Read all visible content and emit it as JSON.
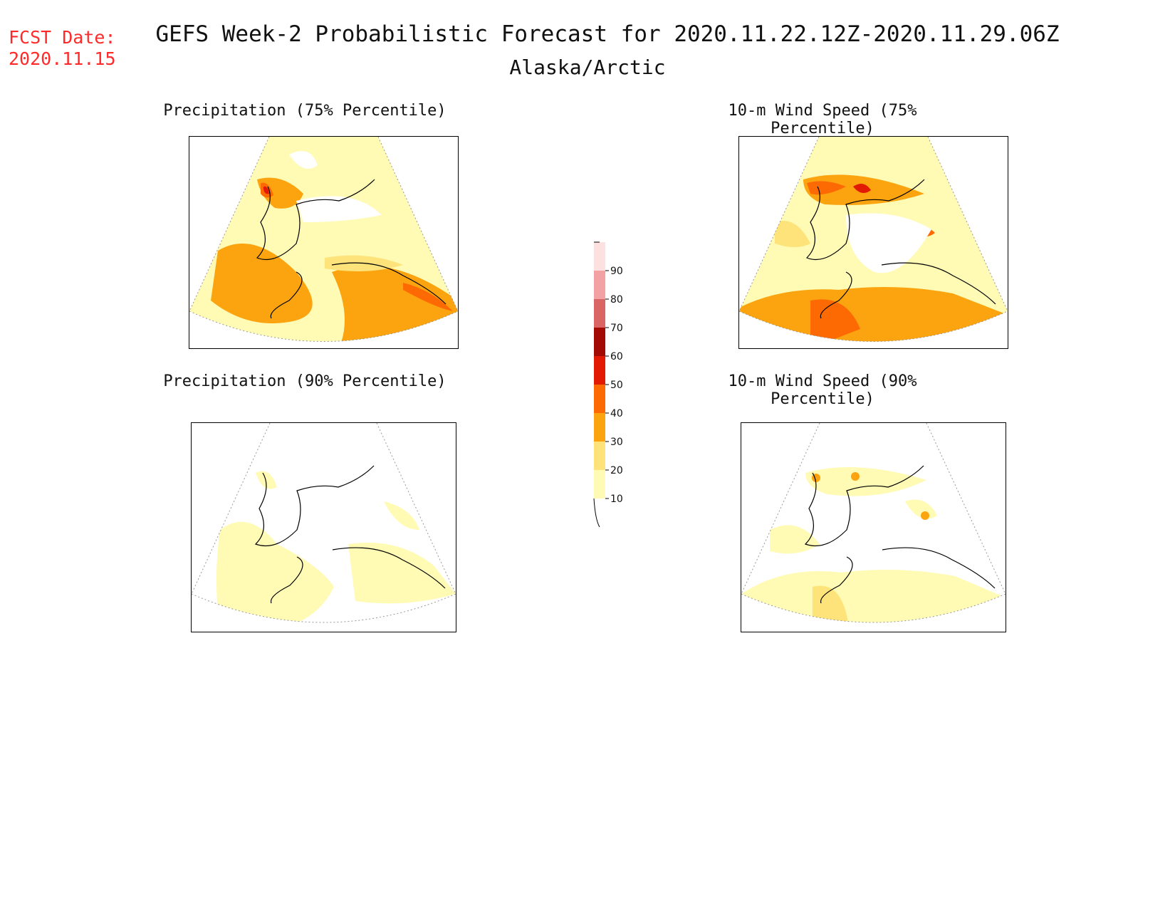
{
  "header": {
    "fcst_label": "FCST Date:",
    "fcst_date": "2020.11.15",
    "title": "GEFS Week-2 Probabilistic Forecast for 2020.11.22.12Z-2020.11.29.06Z",
    "region": "Alaska/Arctic"
  },
  "panels": [
    {
      "title": "Precipitation (75% Percentile)",
      "intensity": "high-precip"
    },
    {
      "title": "10-m Wind Speed (75% Percentile)",
      "intensity": "high-wind"
    },
    {
      "title": "Precipitation (90% Percentile)",
      "intensity": "low-precip"
    },
    {
      "title": "10-m Wind Speed (90% Percentile)",
      "intensity": "low-wind"
    }
  ],
  "colorbar": {
    "levels": [
      "10",
      "20",
      "30",
      "40",
      "50",
      "60",
      "70",
      "80",
      "90"
    ],
    "colors": [
      "#fffab4",
      "#fde37a",
      "#fca40f",
      "#fd6a04",
      "#e31a03",
      "#a30a03",
      "#d96565",
      "#f2a2a2",
      "#fde0e0"
    ]
  }
}
